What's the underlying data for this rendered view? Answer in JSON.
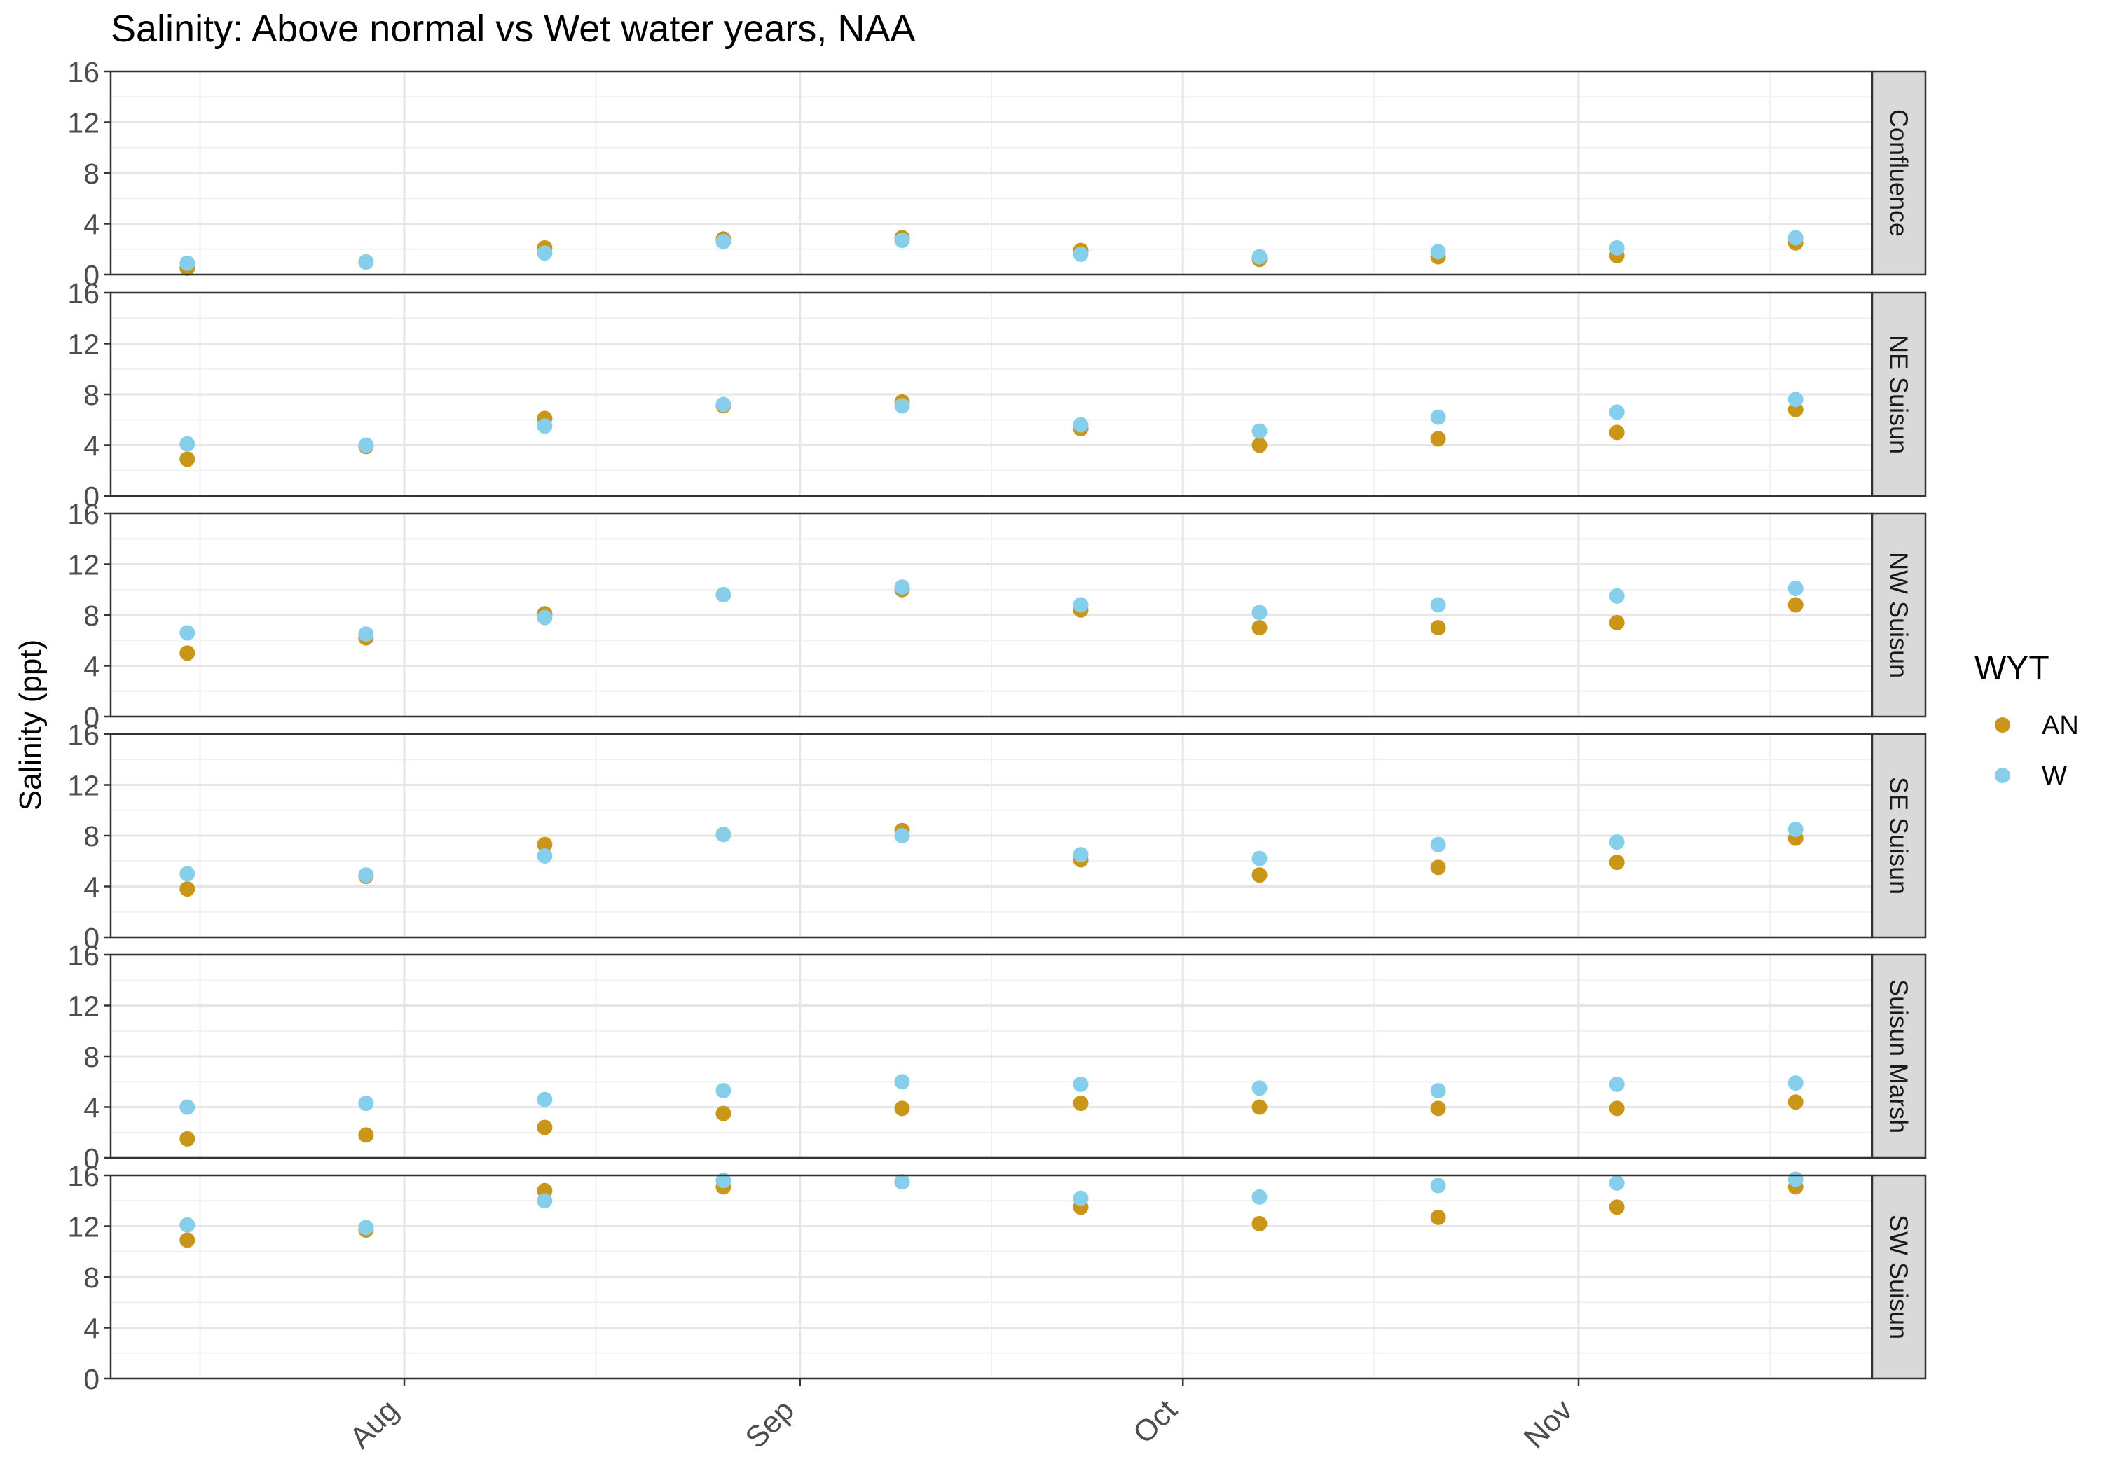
{
  "chart_data": {
    "type": "scatter",
    "title": "Salinity: Above normal vs Wet water years, NAA",
    "xlabel": "",
    "ylabel": "Salinity (ppt)",
    "x_ticks": [
      "Aug",
      "Sep",
      "Oct",
      "Nov"
    ],
    "y_ticks": [
      0,
      4,
      8,
      12,
      16
    ],
    "ylim": [
      0,
      16
    ],
    "grid": true,
    "x": [
      "Jul 15",
      "Jul 29",
      "Aug 12",
      "Aug 26",
      "Sep 9",
      "Sep 23",
      "Oct 7",
      "Oct 21",
      "Nov 4",
      "Nov 18"
    ],
    "legend": {
      "title": "WYT",
      "position": "right",
      "entries": [
        {
          "label": "AN",
          "color": "#C9961A"
        },
        {
          "label": "W",
          "color": "#87CEEB"
        }
      ]
    },
    "panels": [
      {
        "name": "Confluence",
        "series": [
          {
            "name": "AN",
            "color": "#C9961A",
            "values": [
              0.5,
              1.0,
              2.1,
              2.8,
              2.9,
              1.9,
              1.2,
              1.4,
              1.5,
              2.5
            ]
          },
          {
            "name": "W",
            "color": "#87CEEB",
            "values": [
              0.9,
              1.0,
              1.7,
              2.6,
              2.7,
              1.6,
              1.4,
              1.8,
              2.1,
              2.9
            ]
          }
        ]
      },
      {
        "name": "NE Suisun",
        "series": [
          {
            "name": "AN",
            "color": "#C9961A",
            "values": [
              2.9,
              3.9,
              6.1,
              7.1,
              7.4,
              5.3,
              4.0,
              4.5,
              5.0,
              6.8
            ]
          },
          {
            "name": "W",
            "color": "#87CEEB",
            "values": [
              4.1,
              4.0,
              5.5,
              7.2,
              7.1,
              5.6,
              5.1,
              6.2,
              6.6,
              7.6
            ]
          }
        ]
      },
      {
        "name": "NW Suisun",
        "series": [
          {
            "name": "AN",
            "color": "#C9961A",
            "values": [
              5.0,
              6.2,
              8.1,
              9.6,
              10.0,
              8.4,
              7.0,
              7.0,
              7.4,
              8.8
            ]
          },
          {
            "name": "W",
            "color": "#87CEEB",
            "values": [
              6.6,
              6.5,
              7.8,
              9.6,
              10.2,
              8.8,
              8.2,
              8.8,
              9.5,
              10.1
            ]
          }
        ]
      },
      {
        "name": "SE Suisun",
        "series": [
          {
            "name": "AN",
            "color": "#C9961A",
            "values": [
              3.8,
              4.8,
              7.3,
              8.1,
              8.4,
              6.1,
              4.9,
              5.5,
              5.9,
              7.8
            ]
          },
          {
            "name": "W",
            "color": "#87CEEB",
            "values": [
              5.0,
              4.9,
              6.4,
              8.1,
              8.0,
              6.5,
              6.2,
              7.3,
              7.5,
              8.5
            ]
          }
        ]
      },
      {
        "name": "Suisun Marsh",
        "series": [
          {
            "name": "AN",
            "color": "#C9961A",
            "values": [
              1.5,
              1.8,
              2.4,
              3.5,
              3.9,
              4.3,
              4.0,
              3.9,
              3.9,
              4.4
            ]
          },
          {
            "name": "W",
            "color": "#87CEEB",
            "values": [
              4.0,
              4.3,
              4.6,
              5.3,
              6.0,
              5.8,
              5.5,
              5.3,
              5.8,
              5.9
            ]
          }
        ]
      },
      {
        "name": "SW Suisun",
        "series": [
          {
            "name": "AN",
            "color": "#C9961A",
            "values": [
              10.9,
              11.7,
              14.8,
              15.1,
              15.5,
              13.5,
              12.2,
              12.7,
              13.5,
              15.1
            ]
          },
          {
            "name": "W",
            "color": "#87CEEB",
            "values": [
              12.1,
              11.9,
              14.0,
              15.6,
              15.5,
              14.2,
              14.3,
              15.2,
              15.4,
              15.7
            ]
          }
        ]
      }
    ]
  }
}
